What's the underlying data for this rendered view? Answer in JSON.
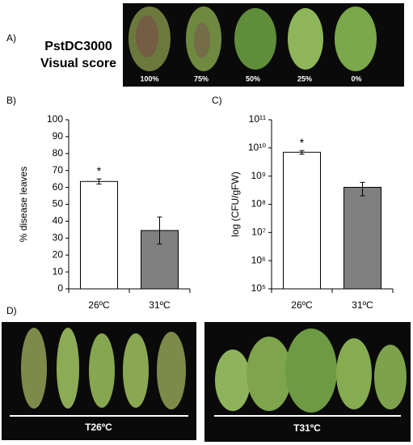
{
  "panel_a": {
    "label": "A)",
    "title_lines": [
      "PstDC3000",
      "Visual score"
    ],
    "scores": [
      "100%",
      "75%",
      "50%",
      "25%",
      "0%"
    ]
  },
  "panel_b": {
    "label": "B)"
  },
  "panel_c": {
    "label": "C)"
  },
  "chart_data": [
    {
      "type": "bar",
      "ylabel": "% disease leaves",
      "categories": [
        "26ºC",
        "31ºC"
      ],
      "values": [
        63.5,
        34.5
      ],
      "errors": [
        1.5,
        8
      ],
      "colors": [
        "#ffffff",
        "#808080"
      ],
      "ylim": [
        0,
        100
      ],
      "yticks": [
        0,
        10,
        20,
        30,
        40,
        50,
        60,
        70,
        80,
        90,
        100
      ],
      "log_scale": false,
      "grid": false,
      "annotations": [
        {
          "text": "*",
          "category": "26ºC"
        }
      ]
    },
    {
      "type": "bar",
      "ylabel": "log (CFU/gFW)",
      "categories": [
        "26ºC",
        "31ºC"
      ],
      "values": [
        7000000000,
        400000000
      ],
      "errors": [
        1000000000,
        200000000
      ],
      "colors": [
        "#ffffff",
        "#808080"
      ],
      "ylim": [
        100000,
        100000000000
      ],
      "yticks": [
        {
          "value": 100000,
          "label": "10⁵"
        },
        {
          "value": 1000000,
          "label": "10⁶"
        },
        {
          "value": 10000000,
          "label": "10⁷"
        },
        {
          "value": 100000000,
          "label": "10⁸"
        },
        {
          "value": 1000000000,
          "label": "10⁹"
        },
        {
          "value": 10000000000,
          "label": "10¹⁰"
        },
        {
          "value": 100000000000,
          "label": "10¹¹"
        }
      ],
      "log_scale": true,
      "grid": false,
      "annotations": [
        {
          "text": "*",
          "category": "26ºC"
        }
      ]
    }
  ],
  "panel_d": {
    "label": "D)",
    "groups": [
      "T26ºC",
      "T31ºC"
    ]
  }
}
